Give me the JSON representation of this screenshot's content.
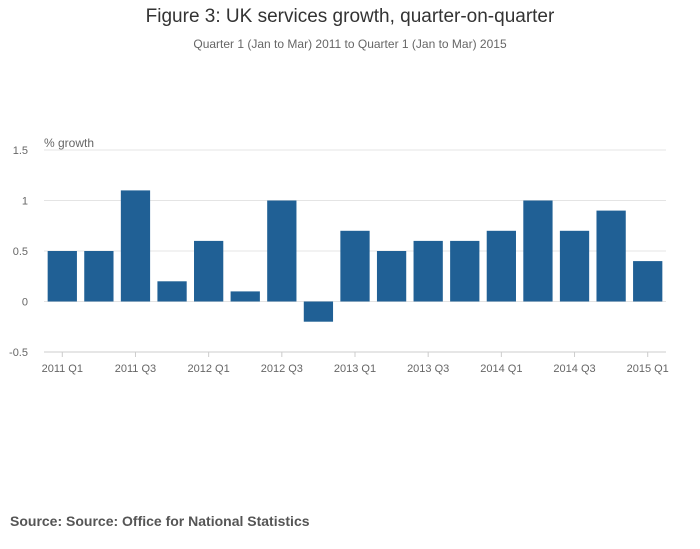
{
  "chart_data": {
    "type": "bar",
    "title": "Figure 3: UK services growth, quarter-on-quarter",
    "subtitle": "Quarter 1 (Jan to Mar) 2011 to Quarter 1 (Jan to Mar) 2015",
    "ylabel": "% growth",
    "xlabel": "",
    "ylim": [
      -0.5,
      1.5
    ],
    "yticks": [
      "1.5",
      "1",
      "0.5",
      "0",
      "-0.5"
    ],
    "ytick_values": [
      1.5,
      1,
      0.5,
      0,
      -0.5
    ],
    "categories": [
      "2011 Q1",
      "2011 Q2",
      "2011 Q3",
      "2011 Q4",
      "2012 Q1",
      "2012 Q2",
      "2012 Q3",
      "2012 Q4",
      "2013 Q1",
      "2013 Q2",
      "2013 Q3",
      "2013 Q4",
      "2014 Q1",
      "2014 Q2",
      "2014 Q3",
      "2014 Q4",
      "2015 Q1"
    ],
    "xtick_labels": [
      "2011 Q1",
      "2011 Q3",
      "2012 Q1",
      "2012 Q3",
      "2013 Q1",
      "2013 Q3",
      "2014 Q1",
      "2014 Q3",
      "2015 Q1"
    ],
    "values": [
      0.5,
      0.5,
      1.1,
      0.2,
      0.6,
      0.1,
      1.0,
      -0.2,
      0.7,
      0.5,
      0.6,
      0.6,
      0.7,
      1.0,
      0.7,
      0.9,
      0.4
    ],
    "grid": true,
    "bar_color": "#206095",
    "source": "Source: Source: Office for National Statistics"
  }
}
